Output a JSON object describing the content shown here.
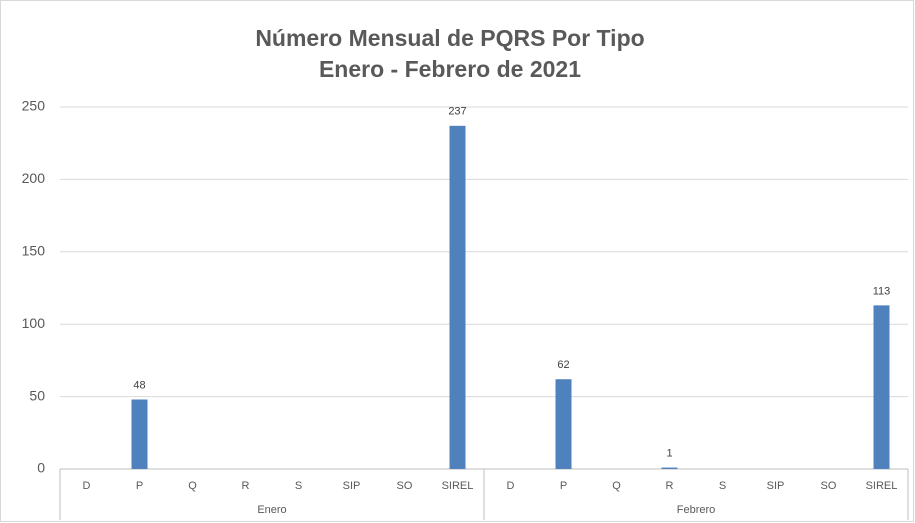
{
  "chart_data": {
    "type": "bar",
    "title": "Número Mensual de PQRS Por Tipo",
    "subtitle": "Enero - Febrero de 2021",
    "color": "#4f81bd",
    "groups": [
      {
        "name": "Enero",
        "categories": [
          "D",
          "P",
          "Q",
          "R",
          "S",
          "SIP",
          "SO",
          "SIREL"
        ],
        "values": [
          null,
          48,
          null,
          null,
          null,
          null,
          null,
          237
        ]
      },
      {
        "name": "Febrero",
        "categories": [
          "D",
          "P",
          "Q",
          "R",
          "S",
          "SIP",
          "SO",
          "SIREL"
        ],
        "values": [
          null,
          62,
          null,
          1,
          null,
          null,
          null,
          113
        ]
      }
    ],
    "ylim": [
      0,
      250
    ],
    "yticks": [
      0,
      50,
      100,
      150,
      200,
      250
    ],
    "grid": true
  }
}
